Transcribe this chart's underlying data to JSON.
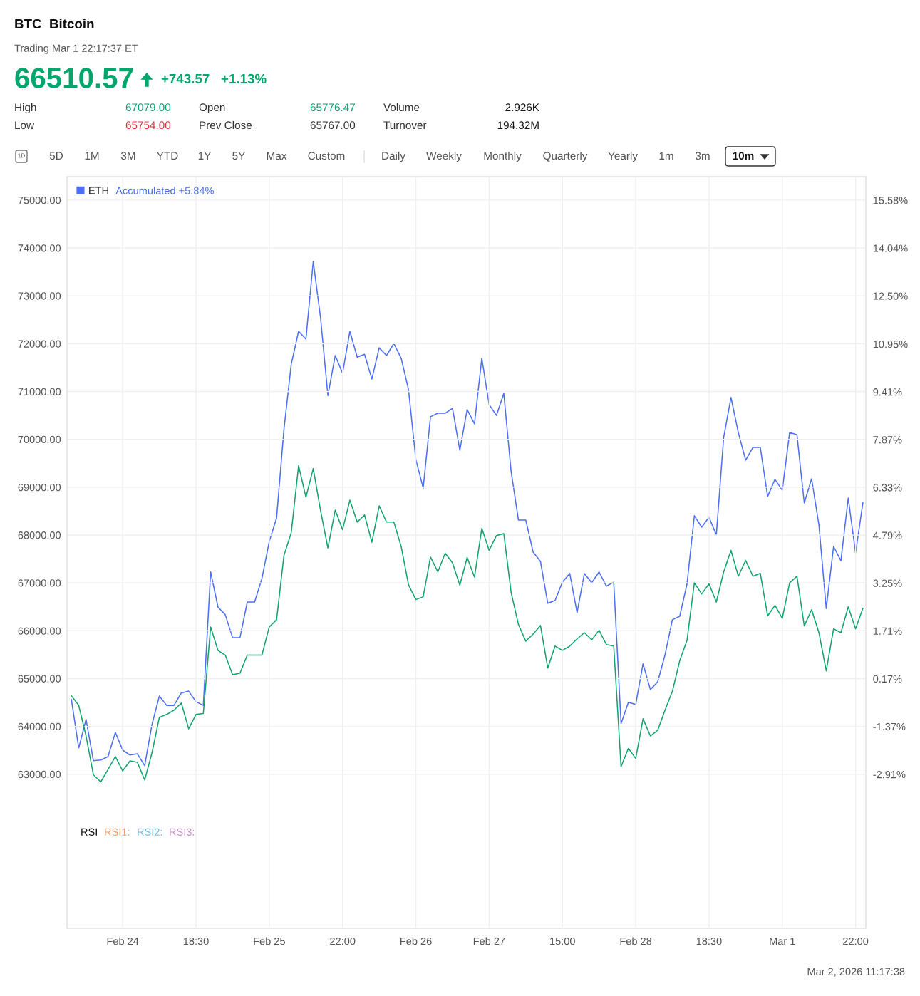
{
  "chart_data": {
    "type": "line",
    "title": "BTC  Bitcoin",
    "subtitle": "Trading Mar 1 22:17:37 ET",
    "annotations": [
      "66510.57",
      "+743.57",
      "+1.13%",
      "High",
      "67079.00",
      "Open",
      "65776.47",
      "Volume",
      "2.926K",
      "Low",
      "65754.00",
      "Prev Close",
      "65767.00",
      "Turnover",
      "194.32M",
      "1D",
      "5D",
      "1M",
      "3M",
      "YTD",
      "1Y",
      "5Y",
      "Max",
      "Custom",
      "Daily",
      "Weekly",
      "Monthly",
      "Quarterly",
      "Yearly",
      "1m",
      "3m",
      "10m",
      "Accumulated +5.84%",
      "RSI",
      "RSI1:",
      "RSI2:",
      "RSI3:",
      "Mar 2, 2026 11:17:38"
    ],
    "categories": [
      null,
      null,
      null,
      null,
      null,
      null,
      null,
      "Feb 24",
      null,
      null,
      null,
      null,
      null,
      null,
      null,
      null,
      null,
      "18:30",
      null,
      null,
      null,
      null,
      null,
      null,
      null,
      null,
      null,
      "Feb 25",
      null,
      null,
      null,
      null,
      null,
      null,
      null,
      null,
      null,
      "22:00",
      null,
      null,
      null,
      null,
      null,
      null,
      null,
      null,
      null,
      "Feb 26",
      null,
      null,
      null,
      null,
      null,
      null,
      null,
      null,
      null,
      "Feb 27",
      null,
      null,
      null,
      null,
      null,
      null,
      null,
      null,
      null,
      "15:00",
      null,
      null,
      null,
      null,
      null,
      null,
      null,
      null,
      null,
      "Feb 28",
      null,
      null,
      null,
      null,
      null,
      null,
      null,
      null,
      null,
      "18:30",
      null,
      null,
      null,
      null,
      null,
      null,
      null,
      null,
      null,
      "Mar 1",
      null,
      null,
      null,
      null,
      null,
      null,
      null,
      null,
      null,
      "22:00",
      null
    ],
    "ylim": [
      59780,
      75490
    ],
    "yticks": [
      {
        "value": 63000,
        "label": "63000.00"
      },
      {
        "value": 64000,
        "label": "64000.00"
      },
      {
        "value": 65000,
        "label": "65000.00"
      },
      {
        "value": 66000,
        "label": "66000.00"
      },
      {
        "value": 67000,
        "label": "67000.00"
      },
      {
        "value": 68000,
        "label": "68000.00"
      },
      {
        "value": 69000,
        "label": "69000.00"
      },
      {
        "value": 70000,
        "label": "70000.00"
      },
      {
        "value": 71000,
        "label": "71000.00"
      },
      {
        "value": 72000,
        "label": "72000.00"
      },
      {
        "value": 73000,
        "label": "73000.00"
      },
      {
        "value": 74000,
        "label": "74000.00"
      },
      {
        "value": 75000,
        "label": "75000.00"
      }
    ],
    "y2lim": [
      -7.87,
      16.34
    ],
    "y2ticks": [
      {
        "value": -2.91,
        "label": "-2.91%"
      },
      {
        "value": -1.37,
        "label": "-1.37%"
      },
      {
        "value": 0.17,
        "label": "0.17%"
      },
      {
        "value": 1.71,
        "label": "1.71%"
      },
      {
        "value": 3.25,
        "label": "3.25%"
      },
      {
        "value": 4.79,
        "label": "4.79%"
      },
      {
        "value": 6.33,
        "label": "6.33%"
      },
      {
        "value": 7.87,
        "label": "7.87%"
      },
      {
        "value": 9.41,
        "label": "9.41%"
      },
      {
        "value": 10.95,
        "label": "10.95%"
      },
      {
        "value": 12.5,
        "label": "12.50%"
      },
      {
        "value": 14.04,
        "label": "14.04%"
      },
      {
        "value": 15.58,
        "label": "15.58%"
      }
    ],
    "grid": true,
    "legend": "top left",
    "marker": "none",
    "line_style": "solid",
    "series": [
      {
        "color": "#10a36c",
        "values": [
          64640,
          64440,
          63800,
          62990,
          62840,
          63100,
          63370,
          63070,
          63280,
          63250,
          62880,
          63450,
          64190,
          64250,
          64340,
          64490,
          63950,
          64250,
          64270,
          66080,
          65590,
          65490,
          65080,
          65110,
          65490,
          65490,
          65490,
          66080,
          66230,
          67570,
          68050,
          69450,
          68790,
          69390,
          68510,
          67730,
          68520,
          68110,
          68730,
          68270,
          68420,
          67850,
          68610,
          68270,
          68270,
          67760,
          66960,
          66650,
          66710,
          67540,
          67230,
          67620,
          67420,
          66950,
          67530,
          67120,
          68140,
          67680,
          67990,
          68030,
          66800,
          66130,
          65780,
          65930,
          66110,
          65220,
          65680,
          65590,
          65680,
          65830,
          65960,
          65810,
          66010,
          65710,
          65680,
          63160,
          63540,
          63330,
          64160,
          63800,
          63920,
          64340,
          64730,
          65370,
          65800,
          67000,
          66770,
          66980,
          66600,
          67230,
          67680,
          67140,
          67470,
          67140,
          67200,
          66310,
          66530,
          66260,
          67000,
          67140,
          66100,
          66440,
          65960,
          65160,
          66040,
          65960,
          66500,
          66040,
          66470
        ]
      },
      {
        "name": "ETH",
        "color": "#4b6ef5",
        "axis": "y2",
        "values": [
          -0.5,
          -2.06,
          -1.14,
          -2.47,
          -2.45,
          -2.34,
          -1.56,
          -2.13,
          -2.29,
          -2.25,
          -2.63,
          -1.3,
          -0.39,
          -0.69,
          -0.69,
          -0.29,
          -0.23,
          -0.57,
          -0.69,
          3.61,
          2.48,
          2.23,
          1.49,
          1.49,
          2.64,
          2.64,
          3.4,
          4.59,
          5.35,
          8.19,
          10.3,
          11.36,
          11.11,
          13.61,
          11.79,
          9.29,
          10.58,
          10.01,
          11.36,
          10.53,
          10.62,
          9.82,
          10.83,
          10.58,
          10.97,
          10.49,
          9.48,
          7.23,
          6.31,
          8.61,
          8.72,
          8.72,
          8.88,
          7.53,
          8.84,
          8.38,
          10.49,
          9.0,
          8.65,
          9.36,
          6.84,
          5.28,
          5.28,
          4.25,
          3.95,
          2.6,
          2.69,
          3.28,
          3.56,
          2.3,
          3.56,
          3.26,
          3.61,
          3.15,
          3.28,
          -1.28,
          -0.59,
          -0.66,
          0.65,
          -0.18,
          0.07,
          0.94,
          2.07,
          2.18,
          3.22,
          5.42,
          5.05,
          5.37,
          4.8,
          7.94,
          9.23,
          8.1,
          7.21,
          7.62,
          7.62,
          6.04,
          6.59,
          6.24,
          8.1,
          8.03,
          5.83,
          6.61,
          5.12,
          2.43,
          4.43,
          3.97,
          5.99,
          4.22,
          5.84
        ]
      }
    ]
  }
}
